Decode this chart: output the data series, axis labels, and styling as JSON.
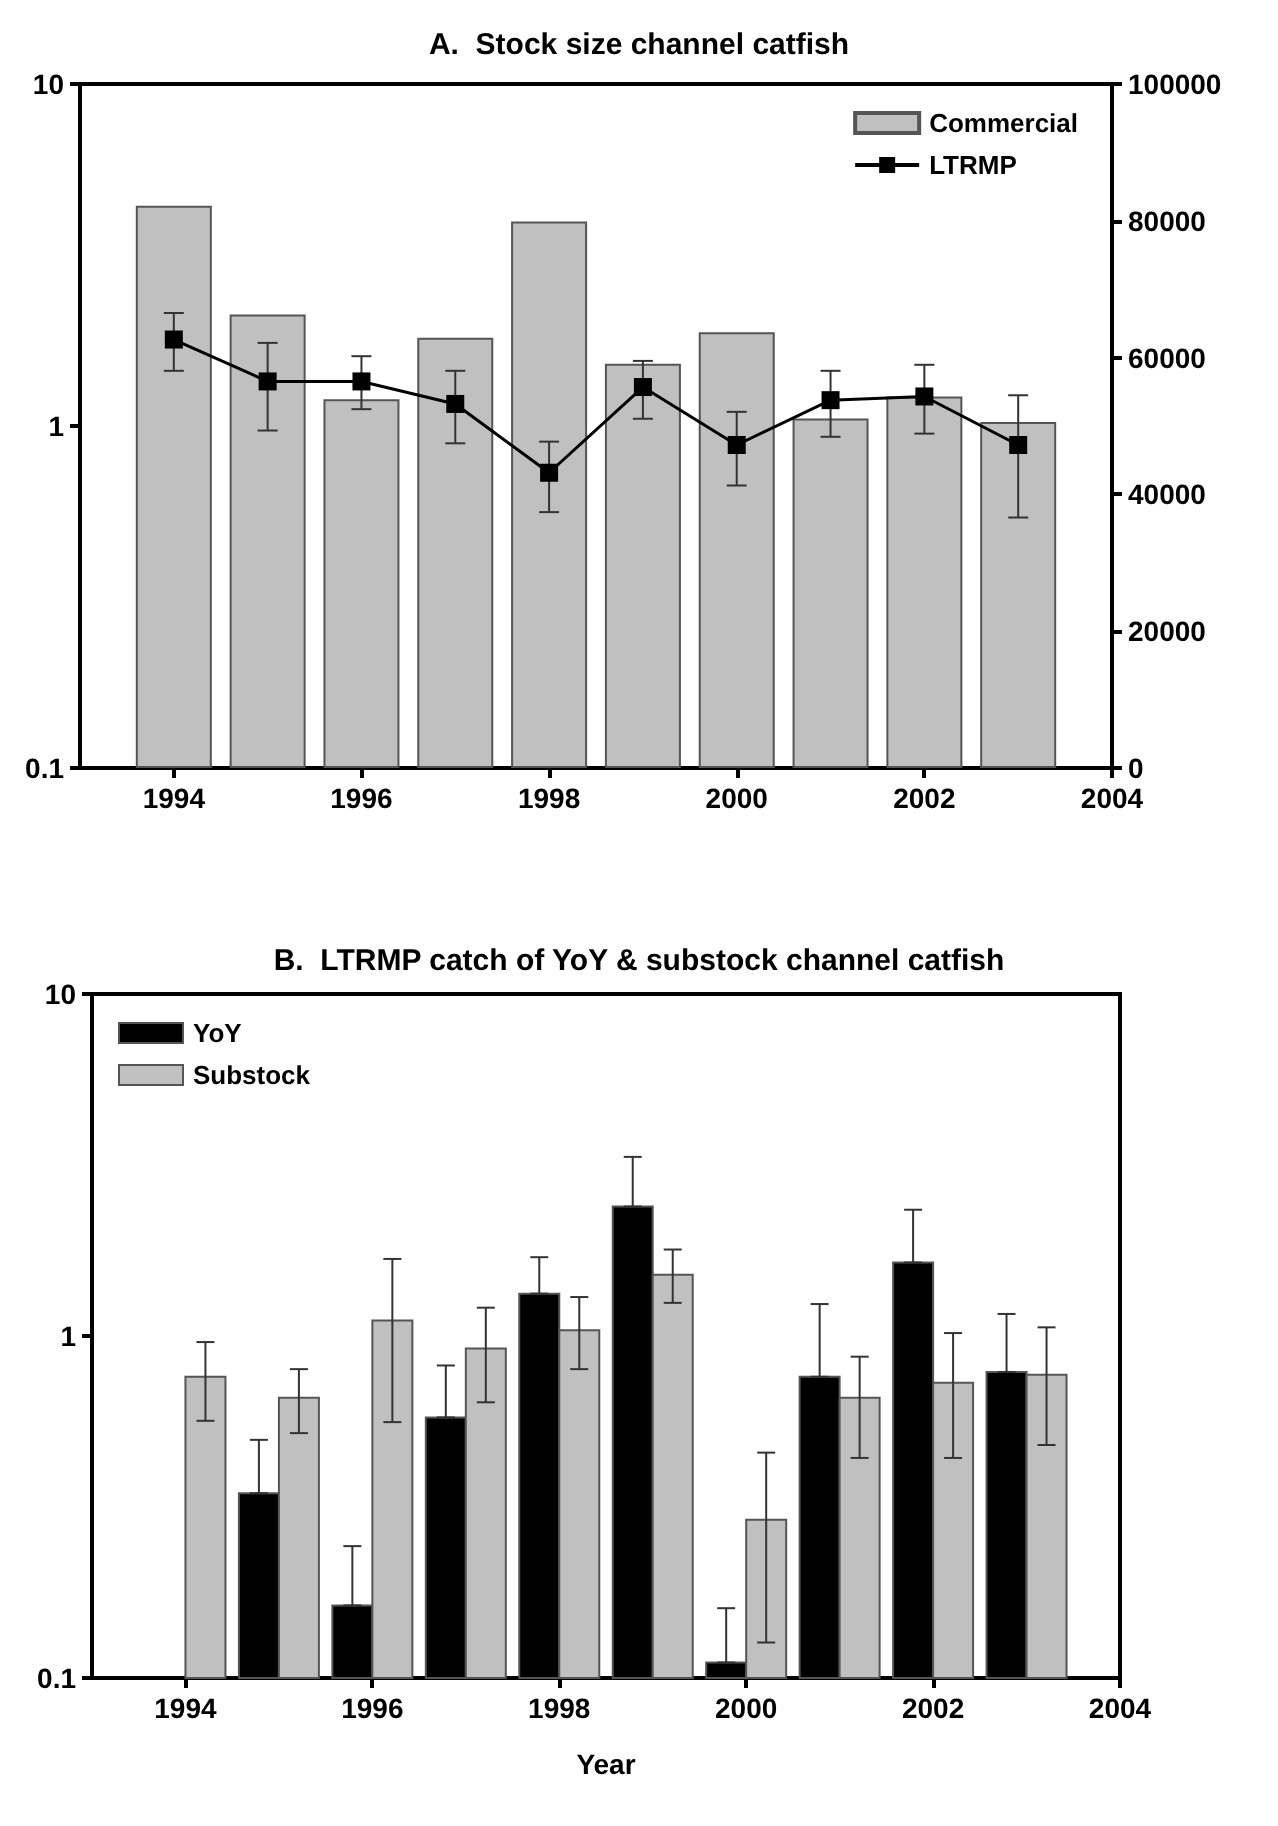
{
  "chart_data": [
    {
      "type": "bar",
      "title": "A.  Stock size channel catfish",
      "x": [
        1994,
        1995,
        1996,
        1997,
        1998,
        1999,
        2000,
        2001,
        2002,
        2003
      ],
      "series": [
        {
          "name": "Commercial",
          "type": "bar",
          "axis": "y2",
          "color": "#c0c0c0",
          "values": [
            82200,
            66300,
            53900,
            62900,
            79900,
            59100,
            63700,
            51100,
            54300,
            50600
          ]
        },
        {
          "name": "LTRMP",
          "type": "line",
          "color": "#000000",
          "values": [
            1.79,
            1.35,
            1.35,
            1.16,
            0.73,
            1.3,
            0.88,
            1.19,
            1.22,
            0.88
          ],
          "errors": [
            [
              1.45,
              2.14
            ],
            [
              0.97,
              1.75
            ],
            [
              1.12,
              1.6
            ],
            [
              0.89,
              1.45
            ],
            [
              0.56,
              0.9
            ],
            [
              1.05,
              1.55
            ],
            [
              0.67,
              1.1
            ],
            [
              0.93,
              1.45
            ],
            [
              0.95,
              1.51
            ],
            [
              0.54,
              1.23
            ]
          ]
        }
      ],
      "xlim": [
        1993,
        2004
      ],
      "xticks": [
        1994,
        1996,
        1998,
        2000,
        2002,
        2004
      ],
      "ylim": [
        0.1,
        10
      ],
      "yticks": [
        0.1,
        1,
        10
      ],
      "log": "y",
      "y2lim": [
        0,
        100000
      ],
      "y2ticks": [
        0,
        20000,
        40000,
        60000,
        80000,
        100000
      ],
      "legend": "top right",
      "marker": "square",
      "grid": false
    },
    {
      "type": "bar",
      "title": "B.  LTRMP catch of YoY & substock channel catfish",
      "xlabel": "Year",
      "x": [
        1994,
        1995,
        1996,
        1997,
        1998,
        1999,
        2000,
        2001,
        2002,
        2003
      ],
      "series": [
        {
          "name": "YoY",
          "color": "#000000",
          "values": [
            null,
            0.347,
            0.163,
            0.578,
            1.33,
            2.39,
            0.111,
            0.76,
            1.64,
            0.785
          ],
          "errors": [
            null,
            [
              0.347,
              0.497
            ],
            [
              0.163,
              0.243
            ],
            [
              0.578,
              0.82
            ],
            [
              1.33,
              1.7
            ],
            [
              2.39,
              3.34
            ],
            [
              0.111,
              0.16
            ],
            [
              0.76,
              1.24
            ],
            [
              1.64,
              2.34
            ],
            [
              0.785,
              1.16
            ]
          ]
        },
        {
          "name": "Substock",
          "color": "#c0c0c0",
          "values": [
            0.76,
            0.66,
            1.11,
            0.92,
            1.04,
            1.51,
            0.29,
            0.66,
            0.73,
            0.77
          ],
          "errors": [
            [
              0.565,
              0.96
            ],
            [
              0.52,
              0.8
            ],
            [
              0.56,
              1.68
            ],
            [
              0.64,
              1.21
            ],
            [
              0.8,
              1.3
            ],
            [
              1.25,
              1.79
            ],
            [
              0.127,
              0.456
            ],
            [
              0.44,
              0.87
            ],
            [
              0.44,
              1.02
            ],
            [
              0.48,
              1.06
            ]
          ]
        }
      ],
      "xlim": [
        1993,
        2004
      ],
      "xticks": [
        1994,
        1996,
        1998,
        2000,
        2002,
        2004
      ],
      "ylim": [
        0.1,
        10
      ],
      "yticks": [
        0.1,
        1,
        10
      ],
      "log": "y",
      "legend": "top left",
      "grid": false
    }
  ]
}
